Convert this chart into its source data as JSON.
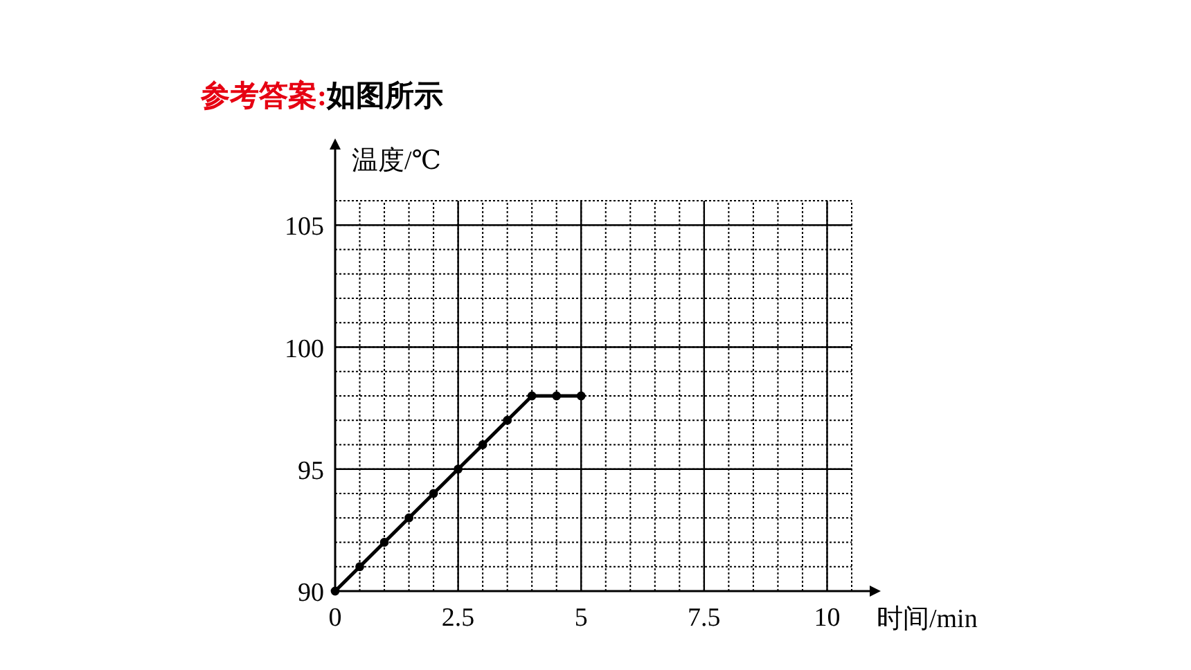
{
  "chart_data": {
    "type": "line",
    "title": "参考答案:",
    "subtitle": "如图所示",
    "xlabel": "时间/min",
    "ylabel": "温度/℃",
    "x": [
      0,
      0.5,
      1,
      1.5,
      2,
      2.5,
      3,
      3.5,
      4,
      4.5,
      5
    ],
    "series": [
      {
        "color": "#000000",
        "values": [
          90,
          91,
          92,
          93,
          94,
          95,
          96,
          97,
          98,
          98,
          98
        ]
      }
    ],
    "xlim": [
      0,
      10.5
    ],
    "ylim": [
      90,
      106
    ],
    "xticks": [
      0,
      2.5,
      5,
      7.5,
      10
    ],
    "yticks": [
      90,
      95,
      100,
      105
    ],
    "grid": true,
    "marker": "circle",
    "line_style": "solid"
  }
}
